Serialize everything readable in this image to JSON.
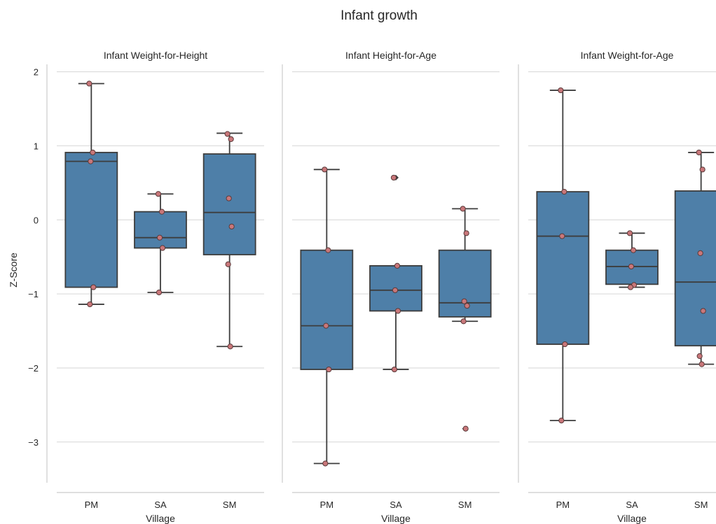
{
  "chart_data": {
    "type": "box",
    "title": "Infant growth",
    "ylabel": "Z-Score",
    "xlabel": "Village",
    "ylim": [
      -3.55,
      2.1
    ],
    "yticks": [
      2,
      1,
      0,
      -1,
      -2,
      -3
    ],
    "ytick_labels": [
      "2",
      "1",
      "0",
      "−1",
      "−2",
      "−3"
    ],
    "grid": "horizontal",
    "colors": {
      "box": "#4e7fa8",
      "point": "#c9777a",
      "line": "#3d3d3d"
    },
    "categories": [
      "PM",
      "SA",
      "SM"
    ],
    "panels": [
      {
        "title": "Infant Weight-for-Height",
        "boxes": [
          {
            "category": "PM",
            "q1": -0.91,
            "median": 0.79,
            "q3": 0.91,
            "whisker_low": -1.14,
            "whisker_high": 1.84,
            "fliers": [],
            "points": [
              1.84,
              0.91,
              0.79,
              -0.91,
              -1.14
            ]
          },
          {
            "category": "SA",
            "q1": -0.38,
            "median": -0.24,
            "q3": 0.11,
            "whisker_low": -0.98,
            "whisker_high": 0.35,
            "fliers": [],
            "points": [
              0.35,
              0.11,
              -0.24,
              -0.38,
              -0.98
            ]
          },
          {
            "category": "SM",
            "q1": -0.47,
            "median": 0.1,
            "q3": 0.89,
            "whisker_low": -1.71,
            "whisker_high": 1.17,
            "fliers": [],
            "points": [
              1.16,
              1.09,
              0.29,
              -0.09,
              -0.6,
              -1.71
            ]
          }
        ]
      },
      {
        "title": "Infant Height-for-Age",
        "boxes": [
          {
            "category": "PM",
            "q1": -2.02,
            "median": -1.43,
            "q3": -0.41,
            "whisker_low": -3.29,
            "whisker_high": 0.68,
            "fliers": [],
            "points": [
              0.68,
              -0.41,
              -1.43,
              -2.02,
              -3.29
            ]
          },
          {
            "category": "SA",
            "q1": -1.23,
            "median": -0.95,
            "q3": -0.62,
            "whisker_low": -2.02,
            "whisker_high": -0.62,
            "fliers": [
              0.57
            ],
            "points": [
              0.57,
              -0.62,
              -0.95,
              -1.23,
              -2.02
            ]
          },
          {
            "category": "SM",
            "q1": -1.31,
            "median": -1.12,
            "q3": -0.41,
            "whisker_low": -1.37,
            "whisker_high": 0.15,
            "fliers": [
              -2.82
            ],
            "points": [
              0.15,
              -0.18,
              -1.1,
              -1.16,
              -1.37,
              -2.82
            ]
          }
        ]
      },
      {
        "title": "Infant Weight-for-Age",
        "boxes": [
          {
            "category": "PM",
            "q1": -1.68,
            "median": -0.22,
            "q3": 0.38,
            "whisker_low": -2.71,
            "whisker_high": 1.75,
            "fliers": [],
            "points": [
              1.75,
              0.38,
              -0.22,
              -1.68,
              -2.71
            ]
          },
          {
            "category": "SA",
            "q1": -0.87,
            "median": -0.63,
            "q3": -0.41,
            "whisker_low": -0.91,
            "whisker_high": -0.18,
            "fliers": [],
            "points": [
              -0.18,
              -0.41,
              -0.63,
              -0.88,
              -0.91
            ]
          },
          {
            "category": "SM",
            "q1": -1.7,
            "median": -0.84,
            "q3": 0.39,
            "whisker_low": -1.95,
            "whisker_high": 0.91,
            "fliers": [],
            "points": [
              0.91,
              0.68,
              -0.45,
              -1.23,
              -1.84,
              -1.95
            ]
          }
        ]
      }
    ]
  }
}
